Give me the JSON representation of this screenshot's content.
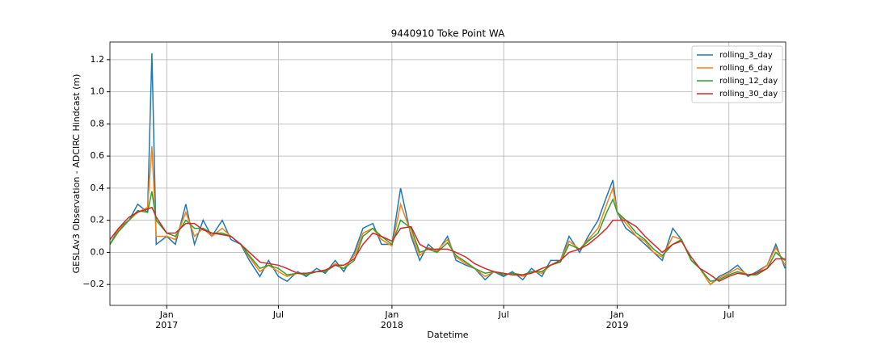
{
  "chart_data": {
    "type": "line",
    "title": "9440910 Toke Point WA",
    "xlabel": "Datetime",
    "ylabel": "GESLAv3 Observation - ADCIRC Hindcast (m)",
    "x": [
      "2016-10-01",
      "2016-10-15",
      "2016-11-01",
      "2016-11-15",
      "2016-12-01",
      "2016-12-08",
      "2016-12-15",
      "2017-01-01",
      "2017-01-15",
      "2017-02-01",
      "2017-02-15",
      "2017-03-01",
      "2017-03-15",
      "2017-04-01",
      "2017-04-15",
      "2017-05-01",
      "2017-05-15",
      "2017-06-01",
      "2017-06-15",
      "2017-07-01",
      "2017-07-15",
      "2017-08-01",
      "2017-08-15",
      "2017-09-01",
      "2017-09-15",
      "2017-10-01",
      "2017-10-15",
      "2017-11-01",
      "2017-11-15",
      "2017-12-01",
      "2017-12-15",
      "2018-01-01",
      "2018-01-15",
      "2018-02-01",
      "2018-02-15",
      "2018-03-01",
      "2018-03-15",
      "2018-04-01",
      "2018-04-15",
      "2018-05-01",
      "2018-05-15",
      "2018-06-01",
      "2018-06-15",
      "2018-07-01",
      "2018-07-15",
      "2018-08-01",
      "2018-08-15",
      "2018-09-01",
      "2018-09-15",
      "2018-10-01",
      "2018-10-15",
      "2018-11-01",
      "2018-11-15",
      "2018-12-01",
      "2018-12-15",
      "2018-12-25",
      "2019-01-01",
      "2019-01-15",
      "2019-02-01",
      "2019-02-15",
      "2019-03-01",
      "2019-03-15",
      "2019-04-01",
      "2019-04-15",
      "2019-05-01",
      "2019-05-15",
      "2019-06-01",
      "2019-06-15",
      "2019-07-01",
      "2019-07-15",
      "2019-08-01",
      "2019-08-15",
      "2019-09-01",
      "2019-09-15",
      "2019-09-30"
    ],
    "series": [
      {
        "name": "rolling_3_day",
        "color": "#1f77b4",
        "values": [
          0.05,
          0.15,
          0.2,
          0.3,
          0.25,
          1.24,
          0.05,
          0.1,
          0.05,
          0.3,
          0.05,
          0.2,
          0.1,
          0.2,
          0.08,
          0.05,
          -0.05,
          -0.15,
          -0.05,
          -0.15,
          -0.18,
          -0.12,
          -0.15,
          -0.1,
          -0.13,
          -0.05,
          -0.12,
          0.0,
          0.15,
          0.18,
          0.05,
          0.05,
          0.4,
          0.1,
          -0.05,
          0.05,
          0.0,
          0.1,
          -0.05,
          -0.08,
          -0.1,
          -0.17,
          -0.12,
          -0.15,
          -0.12,
          -0.17,
          -0.1,
          -0.15,
          -0.05,
          -0.05,
          0.1,
          0.0,
          0.1,
          0.2,
          0.35,
          0.45,
          0.25,
          0.15,
          0.1,
          0.05,
          0.0,
          -0.05,
          0.15,
          0.08,
          -0.05,
          -0.1,
          -0.2,
          -0.15,
          -0.12,
          -0.08,
          -0.15,
          -0.12,
          -0.08,
          0.05,
          -0.1
        ]
      },
      {
        "name": "rolling_6_day",
        "color": "#ff7f0e",
        "values": [
          0.05,
          0.14,
          0.2,
          0.25,
          0.28,
          0.66,
          0.1,
          0.1,
          0.08,
          0.25,
          0.1,
          0.15,
          0.1,
          0.15,
          0.1,
          0.05,
          -0.03,
          -0.12,
          -0.08,
          -0.12,
          -0.15,
          -0.13,
          -0.14,
          -0.12,
          -0.12,
          -0.07,
          -0.1,
          -0.02,
          0.12,
          0.15,
          0.08,
          0.04,
          0.3,
          0.12,
          -0.02,
          0.03,
          0.01,
          0.08,
          -0.03,
          -0.07,
          -0.1,
          -0.15,
          -0.12,
          -0.14,
          -0.13,
          -0.15,
          -0.12,
          -0.13,
          -0.08,
          -0.05,
          0.07,
          0.02,
          0.08,
          0.15,
          0.3,
          0.4,
          0.25,
          0.18,
          0.1,
          0.07,
          0.0,
          -0.03,
          0.1,
          0.08,
          -0.05,
          -0.1,
          -0.2,
          -0.16,
          -0.13,
          -0.1,
          -0.14,
          -0.13,
          -0.08,
          0.03,
          -0.08
        ]
      },
      {
        "name": "rolling_12_day",
        "color": "#2ca02c",
        "values": [
          0.05,
          0.13,
          0.2,
          0.26,
          0.25,
          0.38,
          0.2,
          0.12,
          0.1,
          0.2,
          0.15,
          0.15,
          0.12,
          0.12,
          0.1,
          0.05,
          -0.02,
          -0.1,
          -0.08,
          -0.1,
          -0.14,
          -0.13,
          -0.14,
          -0.12,
          -0.12,
          -0.08,
          -0.1,
          -0.05,
          0.1,
          0.15,
          0.1,
          0.05,
          0.2,
          0.15,
          0.0,
          0.02,
          0.0,
          0.06,
          -0.02,
          -0.06,
          -0.1,
          -0.13,
          -0.12,
          -0.14,
          -0.13,
          -0.14,
          -0.12,
          -0.12,
          -0.08,
          -0.06,
          0.05,
          0.02,
          0.07,
          0.12,
          0.25,
          0.33,
          0.25,
          0.2,
          0.12,
          0.08,
          0.02,
          -0.02,
          0.05,
          0.08,
          -0.05,
          -0.1,
          -0.18,
          -0.17,
          -0.14,
          -0.12,
          -0.14,
          -0.14,
          -0.1,
          0.0,
          -0.05
        ]
      },
      {
        "name": "rolling_30_day",
        "color": "#d62728",
        "values": [
          0.08,
          0.15,
          0.22,
          0.25,
          0.27,
          0.28,
          0.22,
          0.12,
          0.12,
          0.18,
          0.18,
          0.14,
          0.12,
          0.11,
          0.1,
          0.05,
          0.0,
          -0.06,
          -0.07,
          -0.08,
          -0.1,
          -0.13,
          -0.13,
          -0.12,
          -0.11,
          -0.08,
          -0.08,
          -0.04,
          0.05,
          0.12,
          0.1,
          0.07,
          0.15,
          0.16,
          0.05,
          0.02,
          0.02,
          0.02,
          0.0,
          -0.03,
          -0.07,
          -0.1,
          -0.12,
          -0.13,
          -0.14,
          -0.14,
          -0.13,
          -0.1,
          -0.08,
          -0.05,
          0.0,
          0.02,
          0.05,
          0.1,
          0.15,
          0.2,
          0.2,
          0.2,
          0.16,
          0.1,
          0.05,
          0.0,
          0.05,
          0.07,
          -0.03,
          -0.1,
          -0.14,
          -0.18,
          -0.15,
          -0.13,
          -0.14,
          -0.13,
          -0.1,
          -0.04,
          -0.04
        ]
      }
    ],
    "xlim": [
      "2016-10-01",
      "2019-10-01"
    ],
    "xticks": [
      {
        "value": "2017-01-01",
        "label": "Jan\n2017"
      },
      {
        "value": "2017-07-01",
        "label": "Jul"
      },
      {
        "value": "2018-01-01",
        "label": "Jan\n2018"
      },
      {
        "value": "2018-07-01",
        "label": "Jul"
      },
      {
        "value": "2019-01-01",
        "label": "Jan\n2019"
      },
      {
        "value": "2019-07-01",
        "label": "Jul"
      }
    ],
    "ylim": [
      -0.33,
      1.31
    ],
    "yticks": [
      {
        "value": -0.2,
        "label": "−0.2"
      },
      {
        "value": 0,
        "label": "0.0"
      },
      0.2,
      0.4,
      0.6,
      0.8,
      {
        "value": 1,
        "label": "1.0"
      },
      1.2
    ],
    "grid": true,
    "legend": "upper right"
  }
}
